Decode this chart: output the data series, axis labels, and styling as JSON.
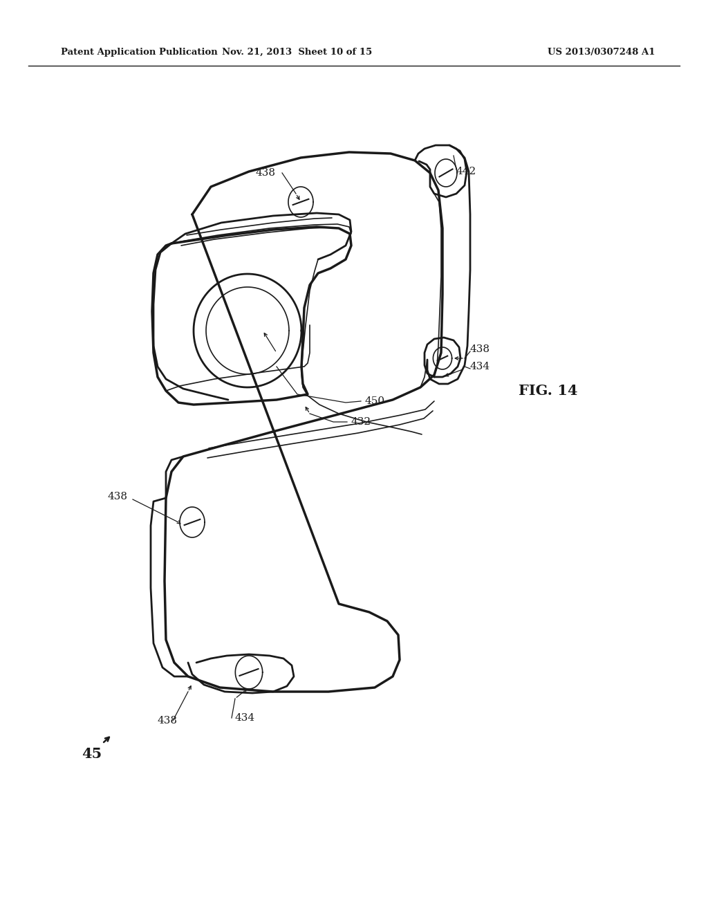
{
  "bg_color": "#ffffff",
  "line_color": "#1a1a1a",
  "header_left": "Patent Application Publication",
  "header_mid": "Nov. 21, 2013  Sheet 10 of 15",
  "header_right": "US 2013/0307248 A1",
  "fig_label": "FIG. 14",
  "part_number": "45"
}
